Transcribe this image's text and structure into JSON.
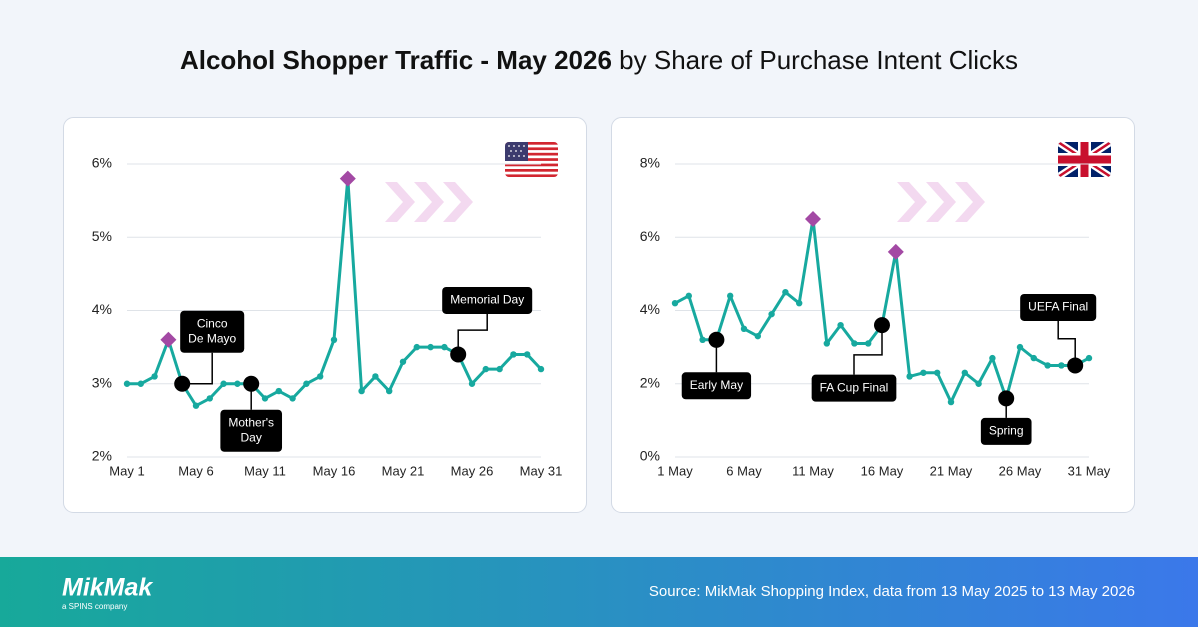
{
  "header": {
    "title_bold": "Alcohol Shopper Traffic - May 2026",
    "title_rest": "by Share of Purchase Intent Clicks"
  },
  "chart_data": [
    {
      "type": "line",
      "color": "#17a99f",
      "highlight_color": "#a349a4",
      "event_color": "#000000",
      "grid": true,
      "categories": [
        "May 1",
        null,
        null,
        null,
        null,
        "May 6",
        null,
        null,
        null,
        null,
        "May 11",
        null,
        null,
        null,
        null,
        "May 16",
        null,
        null,
        null,
        null,
        "May 21",
        null,
        null,
        null,
        null,
        "May 26",
        null,
        null,
        null,
        null,
        "May 31"
      ],
      "values": [
        3.0,
        3.0,
        3.1,
        3.6,
        3.0,
        2.7,
        2.8,
        3.0,
        3.0,
        3.0,
        2.8,
        2.9,
        2.8,
        3.0,
        3.1,
        3.6,
        5.8,
        2.9,
        3.1,
        2.9,
        3.3,
        3.5,
        3.5,
        3.5,
        3.4,
        3.0,
        3.2,
        3.2,
        3.4,
        3.4,
        3.2
      ],
      "ylim": [
        2,
        6
      ],
      "yticks": [
        {
          "value": 2,
          "label": "2%"
        },
        {
          "value": 3,
          "label": "3%"
        },
        {
          "value": 4,
          "label": "4%"
        },
        {
          "value": 5,
          "label": "5%"
        },
        {
          "value": 6,
          "label": "6%"
        }
      ],
      "highlights": [
        3,
        16
      ],
      "annotations": [
        {
          "index": 4,
          "label": [
            "Cinco",
            "De Mayo"
          ]
        },
        {
          "index": 9,
          "label": [
            "Mother's",
            "Day"
          ]
        },
        {
          "index": 24,
          "label": [
            "Memorial Day"
          ]
        }
      ]
    },
    {
      "type": "line",
      "color": "#17a99f",
      "highlight_color": "#a349a4",
      "event_color": "#000000",
      "grid": true,
      "categories": [
        "1 May",
        null,
        null,
        null,
        null,
        "6 May",
        null,
        null,
        null,
        null,
        "11 May",
        null,
        null,
        null,
        null,
        "16 May",
        null,
        null,
        null,
        null,
        "21 May",
        null,
        null,
        null,
        null,
        "26 May",
        null,
        null,
        null,
        null,
        "31 May"
      ],
      "values": [
        4.2,
        4.4,
        3.2,
        3.2,
        4.4,
        3.5,
        3.3,
        3.9,
        4.5,
        4.2,
        6.5,
        3.1,
        3.6,
        3.1,
        3.1,
        3.6,
        5.6,
        2.2,
        2.3,
        2.3,
        1.5,
        2.3,
        2.0,
        2.7,
        1.6,
        3.0,
        2.7,
        2.5,
        2.5,
        2.5,
        2.7
      ],
      "ylim": [
        0,
        8
      ],
      "yticks": [
        {
          "value": 0,
          "label": "0%"
        },
        {
          "value": 2,
          "label": "2%"
        },
        {
          "value": 4,
          "label": "4%"
        },
        {
          "value": 6,
          "label": "6%"
        },
        {
          "value": 8,
          "label": "8%"
        }
      ],
      "highlights": [
        10,
        16
      ],
      "annotations": [
        {
          "index": 3,
          "label": [
            "Early May"
          ]
        },
        {
          "index": 15,
          "label": [
            "FA Cup Final"
          ]
        },
        {
          "index": 24,
          "label": [
            "Spring"
          ]
        },
        {
          "index": 29,
          "label": [
            "UEFA Final"
          ]
        }
      ]
    }
  ],
  "footer": {
    "logo": "MikMak",
    "tagline": "a SPINS company",
    "source": "Source: MikMak Shopping Index, data from 13 May 2025 to 13 May 2026"
  }
}
